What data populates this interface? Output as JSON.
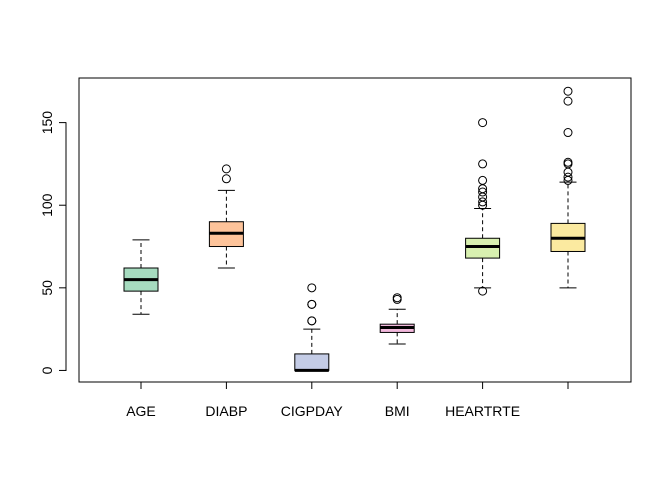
{
  "chart_data": {
    "type": "boxplot",
    "title": "",
    "xlabel": "",
    "ylabel": "",
    "ylim": [
      -7,
      177
    ],
    "yticks": [
      0,
      50,
      100,
      150
    ],
    "series": [
      {
        "category": "AGE",
        "color": "#a6dbbf",
        "whisker_low": 34,
        "q1": 48,
        "median": 55,
        "q3": 62,
        "whisker_high": 79,
        "outliers": []
      },
      {
        "category": "DIABP",
        "color": "#fdc39a",
        "whisker_low": 62,
        "q1": 75,
        "median": 83,
        "q3": 90,
        "whisker_high": 109,
        "outliers": [
          116,
          122
        ]
      },
      {
        "category": "CIGPDAY",
        "color": "#c4cce6",
        "whisker_low": 0,
        "q1": 0,
        "median": 0,
        "q3": 10,
        "whisker_high": 25,
        "outliers": [
          30,
          30,
          40,
          40,
          50
        ]
      },
      {
        "category": "BMI",
        "color": "#f2b8dc",
        "whisker_low": 16,
        "q1": 23,
        "median": 26,
        "q3": 28,
        "whisker_high": 37,
        "outliers": [
          43,
          44
        ]
      },
      {
        "category": "HEARTRTE",
        "color": "#d8f0b0",
        "whisker_low": 50,
        "q1": 68,
        "median": 75,
        "q3": 80,
        "whisker_high": 98,
        "outliers": [
          48,
          100,
          102,
          105,
          108,
          110,
          115,
          125,
          150
        ]
      },
      {
        "category": "",
        "color": "#fbeaa0",
        "whisker_low": 50,
        "q1": 72,
        "median": 80,
        "q3": 89,
        "whisker_high": 114,
        "outliers": [
          115,
          117,
          120,
          125,
          126,
          144,
          163,
          169
        ]
      }
    ]
  }
}
